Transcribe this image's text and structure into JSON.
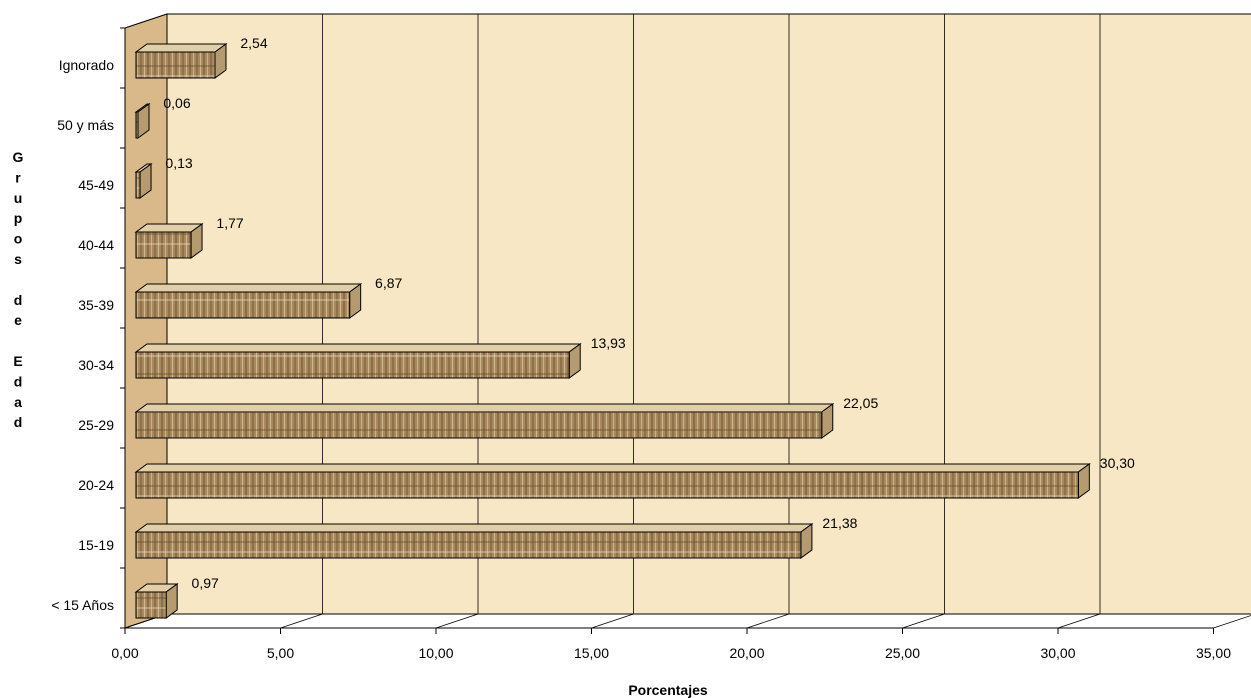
{
  "chart_data": {
    "type": "bar",
    "orientation": "horizontal",
    "style": "3d",
    "categories": [
      "< 15 Años",
      "15-19",
      "20-24",
      "25-29",
      "30-34",
      "35-39",
      "40-44",
      "45-49",
      "50 y más",
      "Ignorado"
    ],
    "values": [
      0.97,
      21.38,
      30.3,
      22.05,
      13.93,
      6.87,
      1.77,
      0.13,
      0.06,
      2.54
    ],
    "data_labels": [
      "0,97",
      "21,38",
      "30,30",
      "22,05",
      "13,93",
      "6,87",
      "1,77",
      "0,13",
      "0,06",
      "2,54"
    ],
    "xlabel": "Porcentajes",
    "ylabel": "Grupos de Edad",
    "ylabel_letters": [
      "G",
      "r",
      "u",
      "p",
      "o",
      "s",
      "",
      "d",
      "e",
      "",
      "E",
      "d",
      "a",
      "d"
    ],
    "xlim": [
      0,
      35
    ],
    "x_ticks": [
      0,
      5,
      10,
      15,
      20,
      25,
      30,
      35
    ],
    "x_tick_labels": [
      "0,00",
      "5,00",
      "10,00",
      "15,00",
      "20,00",
      "25,00",
      "30,00",
      "35,00"
    ],
    "grid": true,
    "legend": "none",
    "colors": {
      "wall": "#f7e7c4",
      "side_wall": "#d9b989",
      "bar_front": "#a8895d",
      "bar_top": "#e2cfa7",
      "bar_side": "#b69a70",
      "grid": "#000000"
    }
  }
}
